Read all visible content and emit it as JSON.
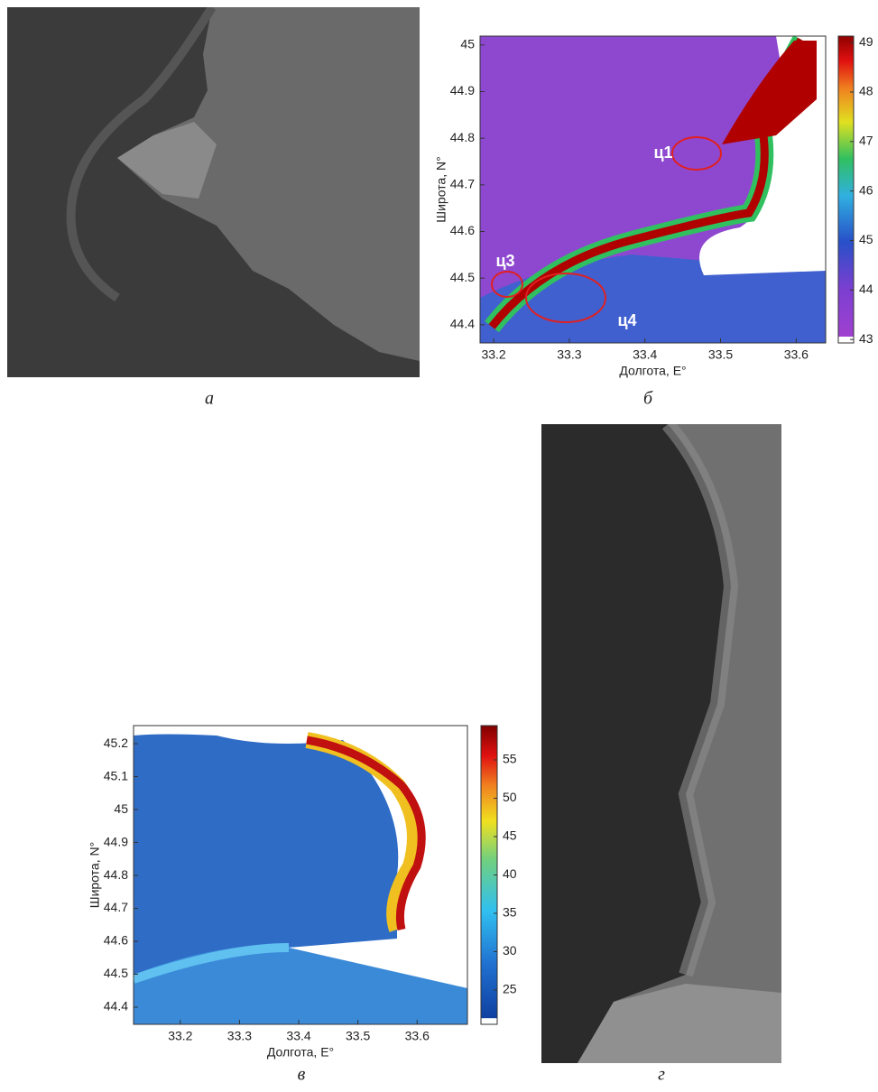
{
  "panels": [
    {
      "label": "а"
    },
    {
      "label": "б",
      "type": "heatmap",
      "xlabel": "Долгота, E°",
      "ylabel": "Широта, N°",
      "xlim": [
        33.182,
        33.639
      ],
      "ylim": [
        44.361,
        45.019
      ],
      "xticks": [
        33.2,
        33.3,
        33.4,
        33.5,
        33.6
      ],
      "yticks": [
        44.4,
        44.5,
        44.6,
        44.7,
        44.8,
        44.9,
        45
      ],
      "colorbar": {
        "lim": [
          42.93,
          49.13
        ],
        "ticks": [
          43,
          44,
          45,
          46,
          47,
          48,
          49
        ]
      },
      "annotations": [
        "ц1",
        "ц3",
        "ц4"
      ]
    },
    {
      "label": "в",
      "type": "heatmap",
      "xlabel": "Долгота, E°",
      "ylabel": "Широта, N°",
      "xlim": [
        33.121,
        33.685
      ],
      "ylim": [
        44.348,
        45.255
      ],
      "xticks": [
        33.2,
        33.3,
        33.4,
        33.5,
        33.6
      ],
      "yticks": [
        44.4,
        44.5,
        44.6,
        44.7,
        44.8,
        44.9,
        45,
        45.1,
        45.2
      ],
      "colorbar": {
        "lim": [
          20.53,
          59.47
        ],
        "ticks": [
          25,
          30,
          35,
          40,
          45,
          50,
          55
        ]
      }
    },
    {
      "label": "г"
    }
  ]
}
